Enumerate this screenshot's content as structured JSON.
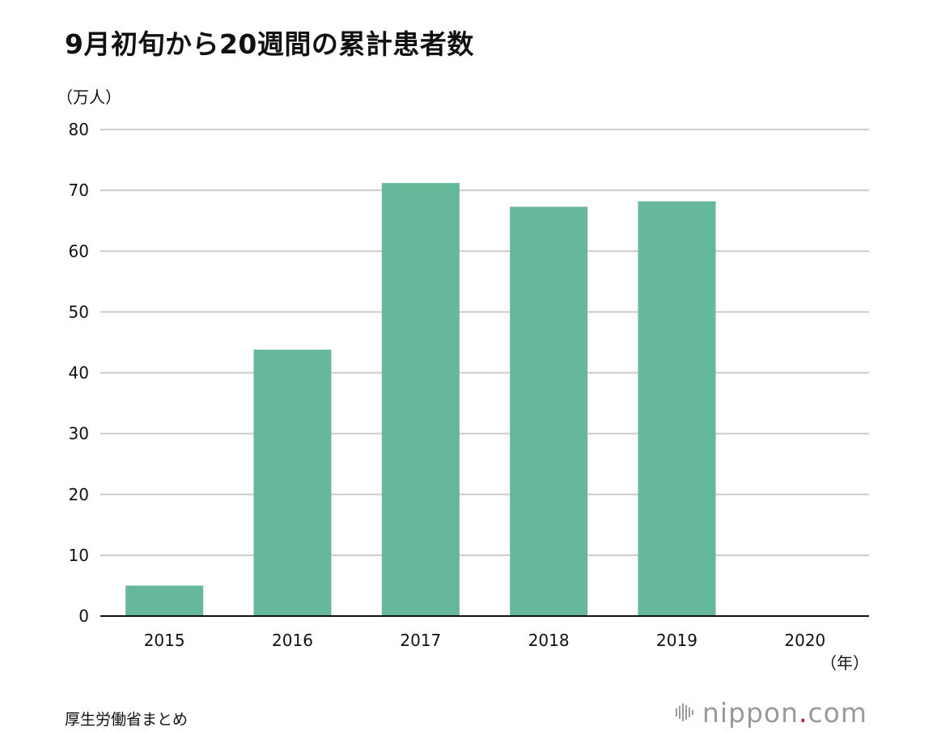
{
  "title": "9月初旬から20週間の累計患者数",
  "y_unit": "（万人）",
  "x_unit": "（年）",
  "source": "厚生労働省まとめ",
  "brand": {
    "name": "nippon",
    "dot": ".",
    "suffix": "com",
    "text_color": "#9a9a9a",
    "dot_color": "#c8102e"
  },
  "chart_data": {
    "type": "bar",
    "title": "9月初旬から20週間の累計患者数",
    "xlabel": "（年）",
    "ylabel": "（万人）",
    "categories": [
      "2015",
      "2016",
      "2017",
      "2018",
      "2019",
      "2020"
    ],
    "values": [
      5,
      43.8,
      71.2,
      67.3,
      68.2,
      0
    ],
    "ylim": [
      0,
      80
    ],
    "yticks": [
      "0",
      "10",
      "20",
      "30",
      "40",
      "50",
      "60",
      "70",
      "80"
    ],
    "grid": true,
    "bar_color": "#65b89a",
    "grid_color": "#cccccc",
    "axis_color": "#111111"
  }
}
